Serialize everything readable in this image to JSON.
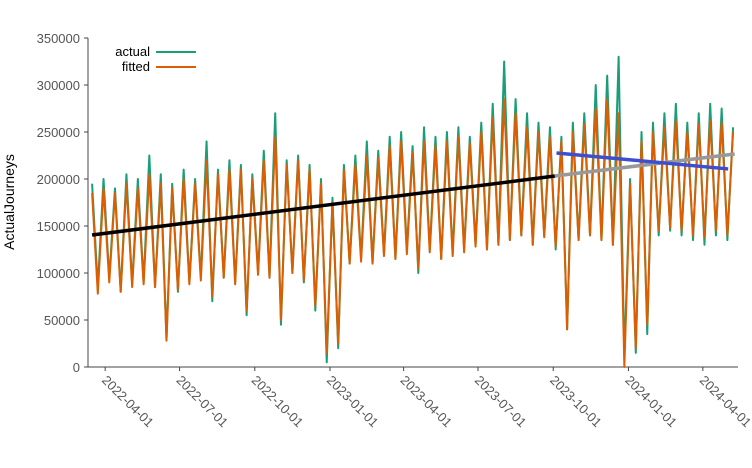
{
  "chart_data": {
    "type": "line",
    "y_label": "ActualJourneys",
    "xlim": [
      "2022-03-11",
      "2024-05-14"
    ],
    "xticks": [
      "2022-04-01",
      "2022-07-01",
      "2022-10-01",
      "2023-01-01",
      "2023-04-01",
      "2023-07-01",
      "2023-10-01",
      "2024-01-01",
      "2024-04-01"
    ],
    "ylim": [
      0,
      350000
    ],
    "yticks": [
      0,
      50000,
      100000,
      150000,
      200000,
      250000,
      300000,
      350000
    ],
    "grid": false,
    "legend": "top-left",
    "x": [
      "2022-03-16",
      "2022-03-23",
      "2022-03-30",
      "2022-04-06",
      "2022-04-13",
      "2022-04-20",
      "2022-04-27",
      "2022-05-04",
      "2022-05-11",
      "2022-05-18",
      "2022-05-25",
      "2022-06-01",
      "2022-06-08",
      "2022-06-15",
      "2022-06-22",
      "2022-06-29",
      "2022-07-06",
      "2022-07-13",
      "2022-07-20",
      "2022-07-27",
      "2022-08-03",
      "2022-08-10",
      "2022-08-17",
      "2022-08-24",
      "2022-08-31",
      "2022-09-07",
      "2022-09-14",
      "2022-09-21",
      "2022-09-28",
      "2022-10-05",
      "2022-10-12",
      "2022-10-19",
      "2022-10-26",
      "2022-11-02",
      "2022-11-09",
      "2022-11-16",
      "2022-11-23",
      "2022-11-30",
      "2022-12-07",
      "2022-12-14",
      "2022-12-21",
      "2022-12-28",
      "2023-01-04",
      "2023-01-11",
      "2023-01-18",
      "2023-01-25",
      "2023-02-01",
      "2023-02-08",
      "2023-02-15",
      "2023-02-22",
      "2023-03-01",
      "2023-03-08",
      "2023-03-15",
      "2023-03-22",
      "2023-03-29",
      "2023-04-05",
      "2023-04-12",
      "2023-04-19",
      "2023-04-26",
      "2023-05-03",
      "2023-05-10",
      "2023-05-17",
      "2023-05-24",
      "2023-05-31",
      "2023-06-07",
      "2023-06-14",
      "2023-06-21",
      "2023-06-28",
      "2023-07-05",
      "2023-07-12",
      "2023-07-19",
      "2023-07-26",
      "2023-08-02",
      "2023-08-09",
      "2023-08-16",
      "2023-08-23",
      "2023-08-30",
      "2023-09-06",
      "2023-09-13",
      "2023-09-20",
      "2023-09-27",
      "2023-10-04",
      "2023-10-11",
      "2023-10-18",
      "2023-10-25",
      "2023-11-01",
      "2023-11-08",
      "2023-11-15",
      "2023-11-22",
      "2023-11-29",
      "2023-12-06",
      "2023-12-13",
      "2023-12-20",
      "2023-12-27",
      "2024-01-03",
      "2024-01-10",
      "2024-01-17",
      "2024-01-24",
      "2024-01-31",
      "2024-02-07",
      "2024-02-14",
      "2024-02-21",
      "2024-02-28",
      "2024-03-06",
      "2024-03-13",
      "2024-03-20",
      "2024-03-27",
      "2024-04-03",
      "2024-04-10",
      "2024-04-17",
      "2024-04-24",
      "2024-05-01",
      "2024-05-08"
    ],
    "series": [
      {
        "name": "actual",
        "color": "#1b9e77",
        "values": [
          195000,
          85000,
          200000,
          95000,
          190000,
          80000,
          205000,
          88000,
          200000,
          90000,
          225000,
          85000,
          205000,
          30000,
          195000,
          80000,
          210000,
          90000,
          200000,
          95000,
          240000,
          70000,
          210000,
          95000,
          220000,
          90000,
          215000,
          55000,
          205000,
          100000,
          230000,
          95000,
          270000,
          45000,
          220000,
          100000,
          225000,
          90000,
          215000,
          60000,
          200000,
          5000,
          180000,
          20000,
          215000,
          110000,
          225000,
          115000,
          240000,
          110000,
          230000,
          120000,
          245000,
          115000,
          250000,
          125000,
          235000,
          100000,
          255000,
          125000,
          245000,
          115000,
          250000,
          120000,
          255000,
          125000,
          245000,
          130000,
          260000,
          125000,
          280000,
          130000,
          325000,
          135000,
          285000,
          140000,
          270000,
          130000,
          260000,
          140000,
          255000,
          125000,
          245000,
          40000,
          260000,
          135000,
          270000,
          140000,
          300000,
          135000,
          310000,
          130000,
          330000,
          10000,
          200000,
          15000,
          250000,
          35000,
          260000,
          140000,
          270000,
          145000,
          280000,
          140000,
          260000,
          135000,
          270000,
          130000,
          280000,
          140000,
          275000,
          135000,
          255000
        ]
      },
      {
        "name": "fitted",
        "color": "#d95f02",
        "values": [
          185000,
          78000,
          190000,
          90000,
          185000,
          80000,
          195000,
          85000,
          190000,
          88000,
          205000,
          85000,
          195000,
          28000,
          190000,
          82000,
          200000,
          88000,
          195000,
          92000,
          220000,
          75000,
          205000,
          95000,
          210000,
          88000,
          210000,
          60000,
          200000,
          98000,
          220000,
          95000,
          245000,
          50000,
          215000,
          100000,
          220000,
          92000,
          210000,
          65000,
          195000,
          15000,
          175000,
          25000,
          210000,
          110000,
          215000,
          112000,
          225000,
          110000,
          222000,
          118000,
          235000,
          115000,
          240000,
          120000,
          228000,
          105000,
          240000,
          122000,
          235000,
          115000,
          240000,
          118000,
          245000,
          122000,
          238000,
          128000,
          250000,
          125000,
          265000,
          130000,
          285000,
          135000,
          270000,
          140000,
          255000,
          130000,
          250000,
          138000,
          245000,
          128000,
          240000,
          40000,
          250000,
          135000,
          258000,
          140000,
          275000,
          135000,
          285000,
          130000,
          270000,
          0,
          195000,
          20000,
          240000,
          45000,
          250000,
          145000,
          255000,
          148000,
          262000,
          145000,
          250000,
          140000,
          258000,
          138000,
          262000,
          145000,
          260000,
          140000,
          250000
        ]
      }
    ],
    "trend_lines": [
      {
        "color": "#000000",
        "x": [
          "2022-03-16",
          "2023-10-03"
        ],
        "values": [
          140400,
          203200
        ]
      },
      {
        "color": "#999999",
        "x": [
          "2023-10-03",
          "2024-05-10"
        ],
        "values": [
          203200,
          226600
        ]
      },
      {
        "color": "#3b4fd0",
        "x": [
          "2023-10-05",
          "2024-05-02"
        ],
        "values": [
          227700,
          210700
        ]
      }
    ]
  }
}
